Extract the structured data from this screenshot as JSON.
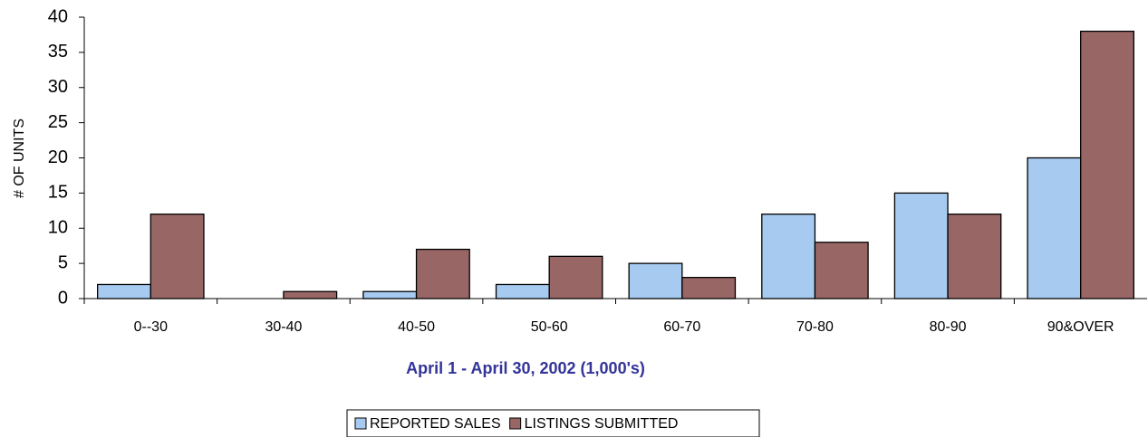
{
  "chart_data": {
    "type": "bar",
    "x_label": "April 1 - April 30, 2002 (1,000's)",
    "y_label": "# OF UNITS",
    "categories": [
      "0--30",
      "30-40",
      "40-50",
      "50-60",
      "60-70",
      "70-80",
      "80-90",
      "90&OVER"
    ],
    "series": [
      {
        "name": "REPORTED SALES",
        "color": "#a6caf0",
        "values": [
          2,
          0,
          1,
          2,
          5,
          12,
          15,
          20
        ]
      },
      {
        "name": "LISTINGS SUBMITTED",
        "color": "#996666",
        "values": [
          12,
          1,
          7,
          6,
          3,
          8,
          12,
          38
        ]
      }
    ],
    "ylim": [
      0,
      40
    ],
    "yticks": [
      0,
      5,
      10,
      15,
      20,
      25,
      30,
      35,
      40
    ],
    "grid": false,
    "legend": "bottom",
    "x_label_color": "#333399"
  }
}
